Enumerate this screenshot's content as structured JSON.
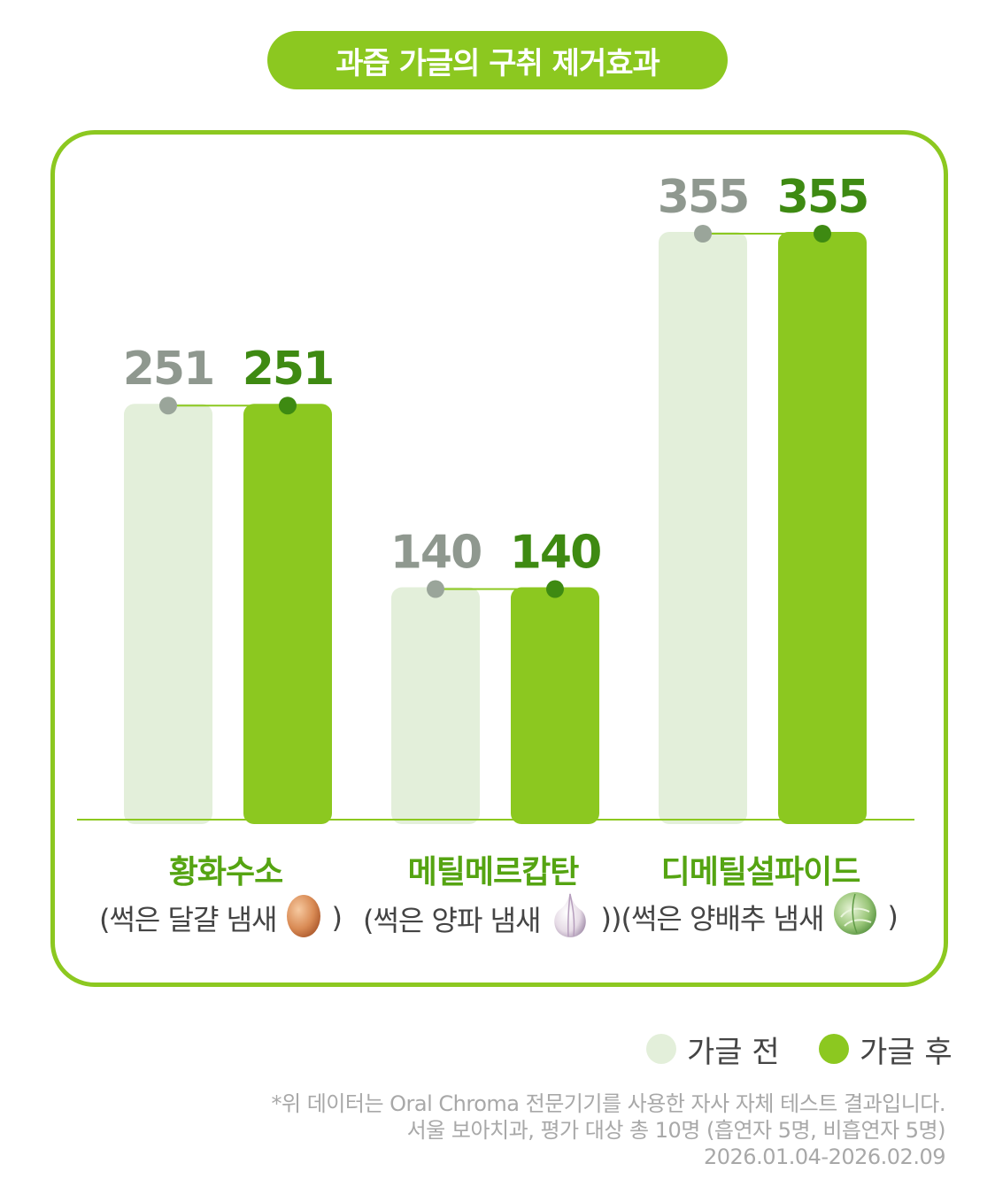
{
  "chart_data": {
    "type": "bar",
    "title": "과즙 가글의 구취 제거효과",
    "categories": [
      "황화수소",
      "메틸메르캅탄",
      "디메틸설파이드"
    ],
    "subcategories": [
      "(썩은 달걀 냄새",
      "(썩은 양파 냄새",
      ")(썩은 양배추 냄새"
    ],
    "series": [
      {
        "name": "가글 전",
        "values": [
          251,
          140,
          355
        ],
        "color": "#e3efda",
        "dot": "#9aa59a",
        "label_color": "#8f988f"
      },
      {
        "name": "가글 후",
        "values": [
          251,
          140,
          355
        ],
        "color": "#8cc820",
        "dot": "#3e8a12",
        "label_color": "#3e8a12"
      }
    ],
    "ylim": [
      0,
      400
    ],
    "grid": false,
    "legend_position": "bottom-right"
  },
  "category_icons": [
    "egg-icon",
    "onion-icon",
    "cabbage-icon"
  ],
  "sub_close": [
    ")",
    ")",
    ")"
  ],
  "footnote": {
    "line1": "*위 데이터는 Oral Chroma 전문기기를 사용한 자사 자체 테스트 결과입니다.",
    "line2": "서울 보아치과, 평가 대상 총 10명 (흡연자 5명, 비흡연자 5명)",
    "line3": "2026.01.04-2026.02.09"
  }
}
